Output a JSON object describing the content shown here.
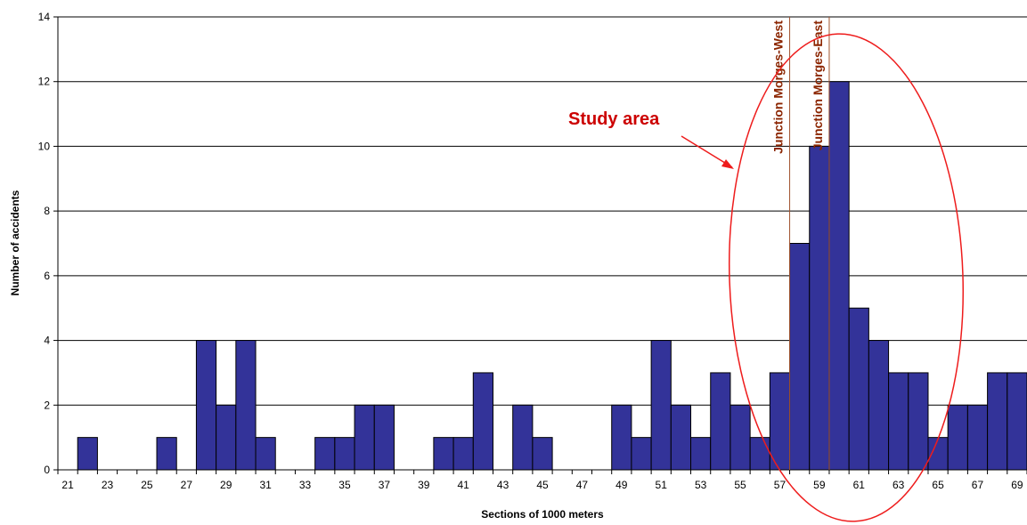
{
  "chart_data": {
    "type": "bar",
    "title": "",
    "xlabel": "Sections of 1000 meters",
    "ylabel": "Number of accidents",
    "categories": [
      21,
      22,
      23,
      24,
      25,
      26,
      27,
      28,
      29,
      30,
      31,
      32,
      33,
      34,
      35,
      36,
      37,
      38,
      39,
      40,
      41,
      42,
      43,
      44,
      45,
      46,
      47,
      48,
      49,
      50,
      51,
      52,
      53,
      54,
      55,
      56,
      57,
      58,
      59,
      60,
      61,
      62,
      63,
      64,
      65,
      66,
      67,
      68,
      69
    ],
    "x_tick_labels": [
      "21",
      "23",
      "25",
      "27",
      "29",
      "31",
      "33",
      "35",
      "37",
      "39",
      "41",
      "43",
      "45",
      "47",
      "49",
      "51",
      "53",
      "55",
      "57",
      "59",
      "61",
      "63",
      "65",
      "67",
      "69"
    ],
    "values": [
      0,
      1,
      0,
      0,
      0,
      1,
      0,
      4,
      2,
      4,
      1,
      0,
      0,
      1,
      1,
      2,
      2,
      0,
      0,
      1,
      1,
      3,
      0,
      2,
      1,
      0,
      0,
      0,
      2,
      1,
      4,
      2,
      1,
      3,
      2,
      1,
      3,
      7,
      10,
      12,
      5,
      4,
      3,
      3,
      1,
      2,
      2,
      3,
      3
    ],
    "ylim": [
      0,
      14
    ],
    "y_ticks": [
      0,
      2,
      4,
      6,
      8,
      10,
      12,
      14
    ],
    "y_tick_labels": [
      "0",
      "2",
      "4",
      "6",
      "8",
      "10",
      "12",
      "14"
    ],
    "grid": "horizontal",
    "legend": "none",
    "bar_color": "#333399",
    "annotations": {
      "study_area_label": "Study area",
      "study_area_color": "#ee1c1c",
      "junction_color": "#a0522d",
      "junctions": [
        {
          "label": "Junction Morges-West",
          "after_section": 57
        },
        {
          "label": "Junction Morges-East",
          "after_section": 59
        }
      ]
    }
  }
}
